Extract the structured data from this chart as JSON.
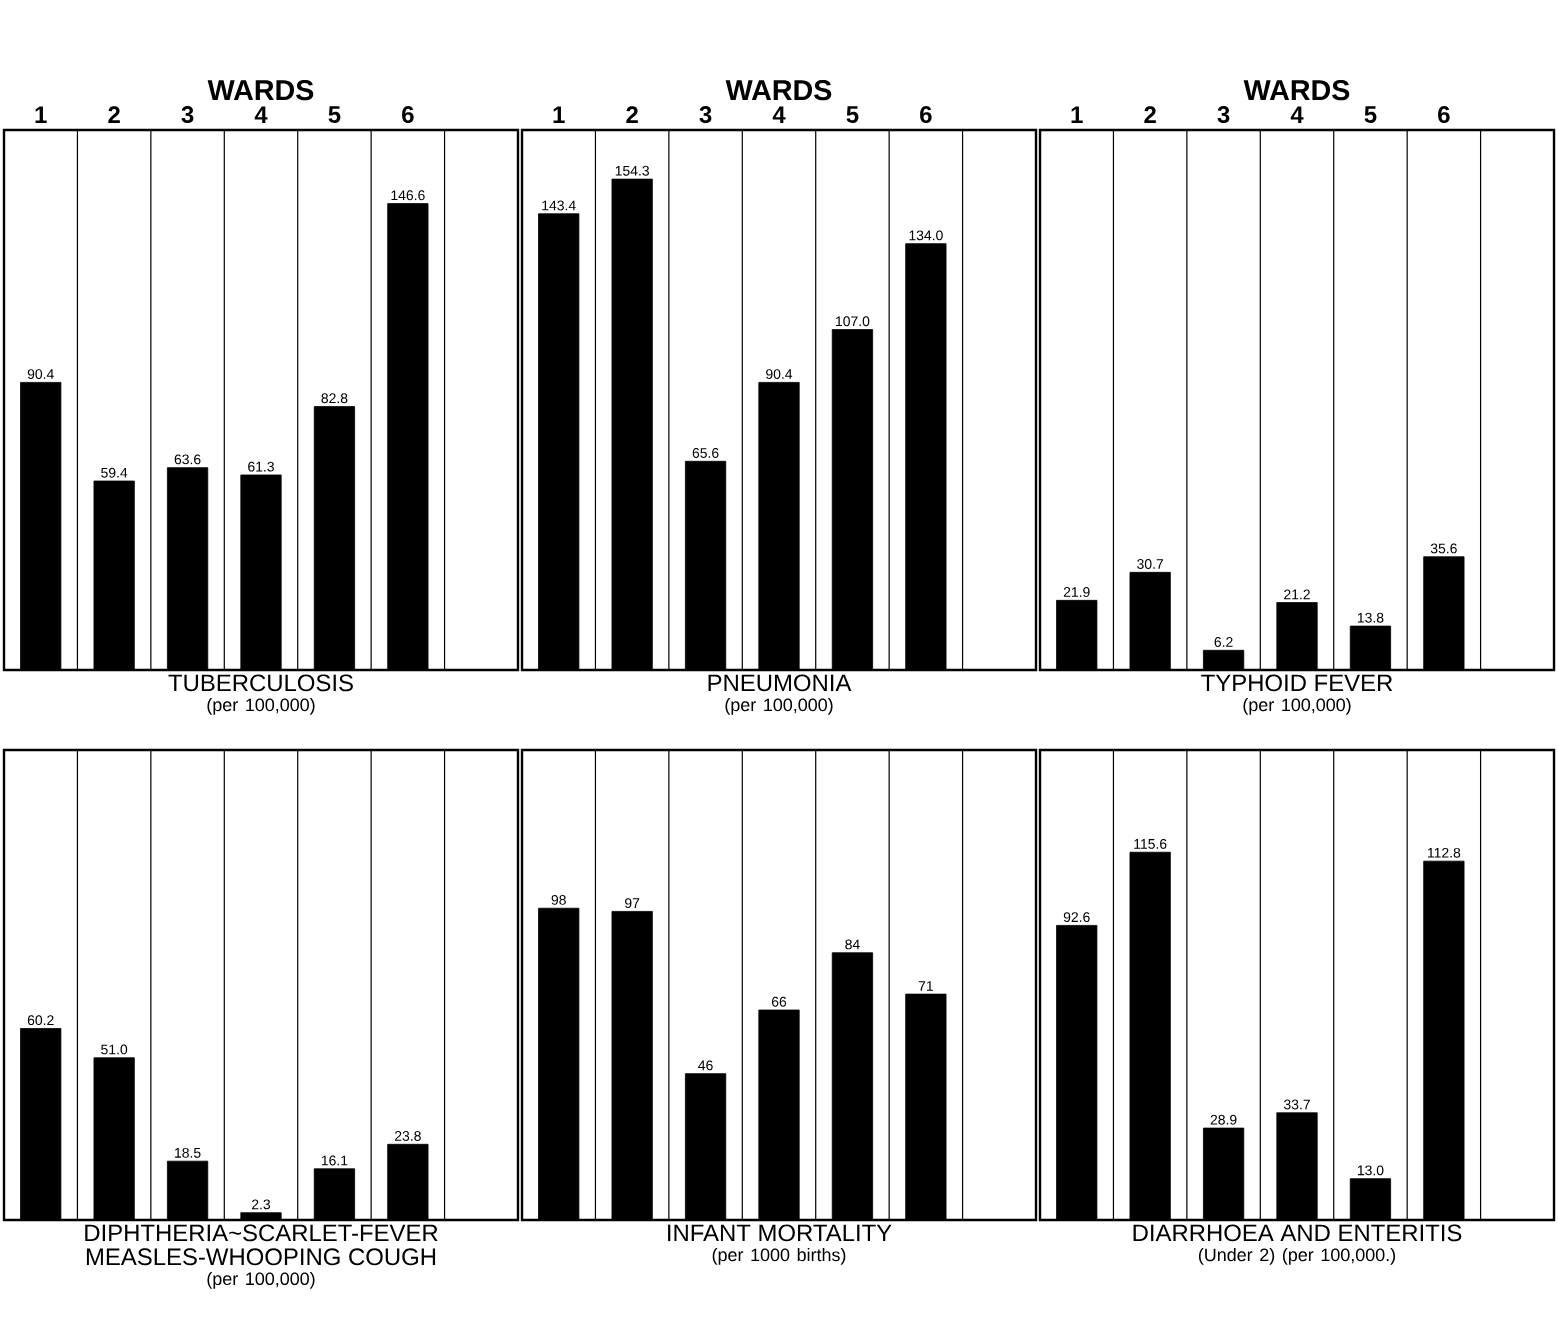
{
  "chart_data": [
    {
      "type": "bar",
      "title": "TUBERCULOSIS",
      "subtitle": "(per 100,000)",
      "xlabel": "WARDS",
      "categories": [
        "1",
        "2",
        "3",
        "4",
        "5",
        "6"
      ],
      "values": [
        90.4,
        59.4,
        63.6,
        61.3,
        82.8,
        146.6
      ],
      "value_labels": [
        "90.4",
        "59.4",
        "63.6",
        "61.3",
        "82.8",
        "146.6"
      ],
      "color": "#000000",
      "grid": "x",
      "tick_labels": "x"
    },
    {
      "type": "bar",
      "title": "PNEUMONIA",
      "subtitle": "(per 100,000)",
      "xlabel": "WARDS",
      "categories": [
        "1",
        "2",
        "3",
        "4",
        "5",
        "6"
      ],
      "values": [
        143.4,
        154.3,
        65.6,
        90.4,
        107.0,
        134.0
      ],
      "value_labels": [
        "143.4",
        "154.3",
        "65.6",
        "90.4",
        "107.0",
        "134.0"
      ],
      "color": "#000000",
      "grid": "x",
      "tick_labels": "x"
    },
    {
      "type": "bar",
      "title": "TYPHOID FEVER",
      "subtitle": "(per 100,000)",
      "xlabel": "WARDS",
      "categories": [
        "1",
        "2",
        "3",
        "4",
        "5",
        "6"
      ],
      "values": [
        21.9,
        30.7,
        6.2,
        21.2,
        13.8,
        35.6
      ],
      "value_labels": [
        "21.9",
        "30.7",
        "6.2",
        "21.2",
        "13.8",
        "35.6"
      ],
      "color": "#000000",
      "grid": "x",
      "tick_labels": "x"
    },
    {
      "type": "bar",
      "title": "DIPHTHERIA~SCARLET-FEVER MEASLES-WHOOPING COUGH",
      "subtitle": "(per 100,000)",
      "categories": [
        null,
        null,
        null,
        null,
        null,
        null
      ],
      "values": [
        60.2,
        51.0,
        18.5,
        2.3,
        16.1,
        23.8
      ],
      "value_labels": [
        "60.2",
        "51.0",
        "18.5",
        "2.3",
        "16.1",
        "23.8"
      ],
      "color": "#000000",
      "grid": "x",
      "tick_labels": false
    },
    {
      "type": "bar",
      "title": "INFANT MORTALITY",
      "subtitle": "(per 1000 births)",
      "categories": [
        null,
        null,
        null,
        null,
        null,
        null
      ],
      "values": [
        98,
        97,
        46,
        66,
        84,
        71
      ],
      "value_labels": [
        "98",
        "97",
        "46",
        "66",
        "84",
        "71"
      ],
      "color": "#000000",
      "grid": "x",
      "tick_labels": false
    },
    {
      "type": "bar",
      "title": "DIARRHOEA AND ENTERITIS",
      "subtitle": "(Under 2) (per 100,000.)",
      "categories": [
        null,
        null,
        null,
        null,
        null,
        null
      ],
      "values": [
        92.6,
        115.6,
        28.9,
        33.7,
        13.0,
        112.8
      ],
      "value_labels": [
        "92.6",
        "115.6",
        "28.9",
        "33.7",
        "13.0",
        "112.8"
      ],
      "color": "#000000",
      "grid": "x",
      "tick_labels": false
    }
  ]
}
